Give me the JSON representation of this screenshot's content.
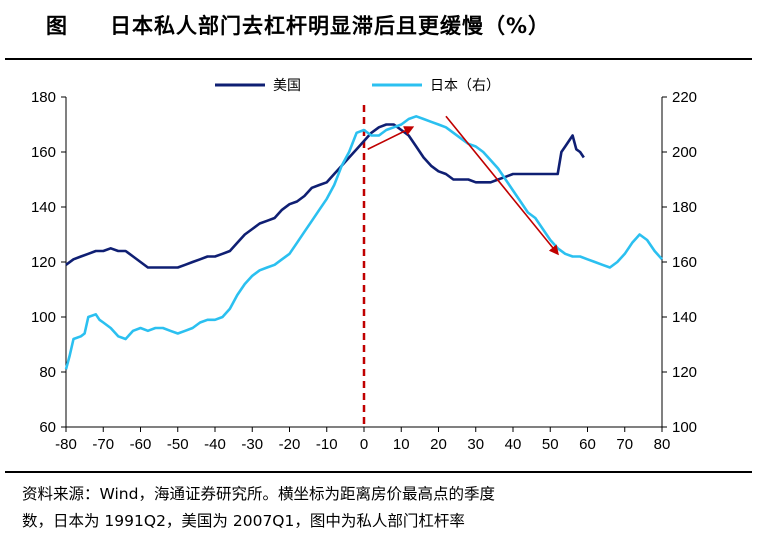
{
  "header": {
    "fig_label": "图",
    "title": "日本私人部门去杠杆明显滞后且更缓慢（%）"
  },
  "footer": {
    "note_line1": "资料来源：Wind，海通证券研究所。横坐标为距离房价最高点的季度",
    "note_line2": "数，日本为 1991Q2，美国为 2007Q1，图中为私人部门杠杆率"
  },
  "chart_data": {
    "type": "line",
    "title": "日本私人部门去杠杆明显滞后且更缓慢（%）",
    "xlabel": "",
    "ylabel": "",
    "xlim": [
      -80,
      80
    ],
    "x_ticks": [
      -80,
      -70,
      -60,
      -50,
      -40,
      -30,
      -20,
      -10,
      0,
      10,
      20,
      30,
      40,
      50,
      60,
      70,
      80
    ],
    "ylim_left": [
      60,
      180
    ],
    "y_ticks_left": [
      60,
      80,
      100,
      120,
      140,
      160,
      180
    ],
    "ylim_right": [
      100,
      220
    ],
    "y_ticks_right": [
      100,
      120,
      140,
      160,
      180,
      200,
      220
    ],
    "grid": false,
    "legend_position": "top-center",
    "series": [
      {
        "name": "美国",
        "axis": "left",
        "color": "#0f1f73",
        "points": [
          [
            -80,
            119
          ],
          [
            -78,
            121
          ],
          [
            -76,
            122
          ],
          [
            -74,
            123
          ],
          [
            -72,
            124
          ],
          [
            -70,
            124
          ],
          [
            -68,
            125
          ],
          [
            -66,
            124
          ],
          [
            -64,
            124
          ],
          [
            -62,
            122
          ],
          [
            -60,
            120
          ],
          [
            -58,
            118
          ],
          [
            -56,
            118
          ],
          [
            -54,
            118
          ],
          [
            -52,
            118
          ],
          [
            -50,
            118
          ],
          [
            -48,
            119
          ],
          [
            -46,
            120
          ],
          [
            -44,
            121
          ],
          [
            -42,
            122
          ],
          [
            -40,
            122
          ],
          [
            -38,
            123
          ],
          [
            -36,
            124
          ],
          [
            -34,
            127
          ],
          [
            -32,
            130
          ],
          [
            -30,
            132
          ],
          [
            -28,
            134
          ],
          [
            -26,
            135
          ],
          [
            -24,
            136
          ],
          [
            -22,
            139
          ],
          [
            -20,
            141
          ],
          [
            -18,
            142
          ],
          [
            -16,
            144
          ],
          [
            -14,
            147
          ],
          [
            -12,
            148
          ],
          [
            -10,
            149
          ],
          [
            -8,
            152
          ],
          [
            -6,
            155
          ],
          [
            -4,
            158
          ],
          [
            -2,
            161
          ],
          [
            0,
            164
          ],
          [
            2,
            167
          ],
          [
            4,
            169
          ],
          [
            6,
            170
          ],
          [
            8,
            170
          ],
          [
            10,
            168
          ],
          [
            12,
            166
          ],
          [
            14,
            162
          ],
          [
            16,
            158
          ],
          [
            18,
            155
          ],
          [
            20,
            153
          ],
          [
            22,
            152
          ],
          [
            24,
            150
          ],
          [
            26,
            150
          ],
          [
            28,
            150
          ],
          [
            30,
            149
          ],
          [
            32,
            149
          ],
          [
            34,
            149
          ],
          [
            36,
            150
          ],
          [
            38,
            151
          ],
          [
            40,
            152
          ],
          [
            42,
            152
          ],
          [
            44,
            152
          ],
          [
            46,
            152
          ],
          [
            48,
            152
          ],
          [
            50,
            152
          ],
          [
            52,
            152
          ],
          [
            53,
            160
          ],
          [
            54,
            162
          ],
          [
            55,
            164
          ],
          [
            56,
            166
          ],
          [
            57,
            161
          ],
          [
            58,
            160
          ],
          [
            59,
            158
          ]
        ]
      },
      {
        "name": "日本（右）",
        "axis": "right",
        "color": "#2bc0f0",
        "points": [
          [
            -80,
            121
          ],
          [
            -79,
            126
          ],
          [
            -78,
            132
          ],
          [
            -76,
            133
          ],
          [
            -75,
            134
          ],
          [
            -74,
            140
          ],
          [
            -72,
            141
          ],
          [
            -71,
            139
          ],
          [
            -70,
            138
          ],
          [
            -68,
            136
          ],
          [
            -66,
            133
          ],
          [
            -64,
            132
          ],
          [
            -62,
            135
          ],
          [
            -60,
            136
          ],
          [
            -58,
            135
          ],
          [
            -56,
            136
          ],
          [
            -54,
            136
          ],
          [
            -52,
            135
          ],
          [
            -50,
            134
          ],
          [
            -48,
            135
          ],
          [
            -46,
            136
          ],
          [
            -44,
            138
          ],
          [
            -42,
            139
          ],
          [
            -40,
            139
          ],
          [
            -38,
            140
          ],
          [
            -36,
            143
          ],
          [
            -34,
            148
          ],
          [
            -32,
            152
          ],
          [
            -30,
            155
          ],
          [
            -28,
            157
          ],
          [
            -26,
            158
          ],
          [
            -24,
            159
          ],
          [
            -22,
            161
          ],
          [
            -20,
            163
          ],
          [
            -18,
            167
          ],
          [
            -16,
            171
          ],
          [
            -14,
            175
          ],
          [
            -12,
            179
          ],
          [
            -10,
            183
          ],
          [
            -8,
            188
          ],
          [
            -6,
            195
          ],
          [
            -4,
            200
          ],
          [
            -2,
            207
          ],
          [
            0,
            208
          ],
          [
            2,
            206
          ],
          [
            4,
            206
          ],
          [
            6,
            208
          ],
          [
            8,
            209
          ],
          [
            10,
            210
          ],
          [
            12,
            212
          ],
          [
            14,
            213
          ],
          [
            16,
            212
          ],
          [
            18,
            211
          ],
          [
            20,
            210
          ],
          [
            22,
            209
          ],
          [
            24,
            207
          ],
          [
            26,
            205
          ],
          [
            28,
            203
          ],
          [
            30,
            202
          ],
          [
            32,
            200
          ],
          [
            34,
            197
          ],
          [
            36,
            194
          ],
          [
            38,
            190
          ],
          [
            40,
            186
          ],
          [
            42,
            182
          ],
          [
            44,
            178
          ],
          [
            46,
            176
          ],
          [
            48,
            172
          ],
          [
            50,
            168
          ],
          [
            52,
            165
          ],
          [
            54,
            163
          ],
          [
            56,
            162
          ],
          [
            58,
            162
          ],
          [
            60,
            161
          ],
          [
            62,
            160
          ],
          [
            64,
            159
          ],
          [
            66,
            158
          ],
          [
            68,
            160
          ],
          [
            70,
            163
          ],
          [
            72,
            167
          ],
          [
            74,
            170
          ],
          [
            76,
            168
          ],
          [
            78,
            164
          ],
          [
            80,
            161
          ]
        ]
      }
    ],
    "annotations": {
      "vertical_line_x": 0,
      "vertical_line_color": "#c00000",
      "arrow_color": "#c00000",
      "arrows": [
        {
          "from": [
            1,
            161
          ],
          "to": [
            13,
            169
          ],
          "axis": "left"
        },
        {
          "from": [
            22,
            173
          ],
          "to": [
            52,
            123
          ],
          "axis": "left"
        }
      ]
    }
  }
}
